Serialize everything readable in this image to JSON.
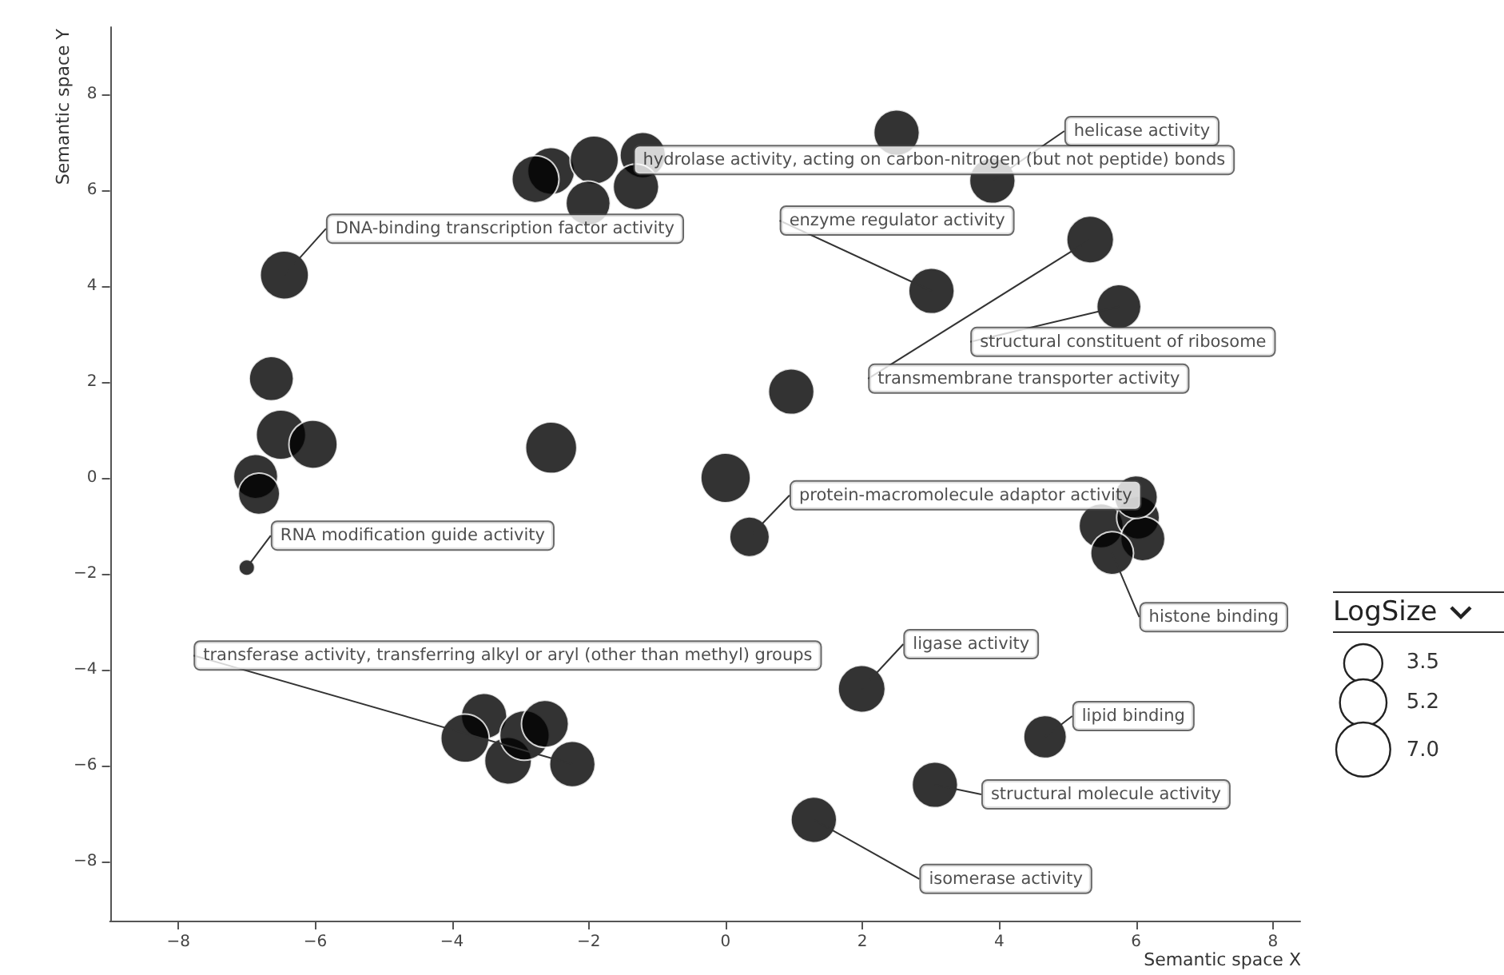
{
  "chart_data": {
    "type": "bubble",
    "xlabel": "Semantic space X",
    "ylabel": "Semantic space Y",
    "legend_title": "LogSize",
    "x": [
      -6.45,
      -6.64,
      -6.5,
      -6.03,
      -6.87,
      -6.82,
      -7.0,
      -2.55,
      -2.55,
      -2.78,
      -1.92,
      -1.21,
      -1.31,
      -2.01,
      0,
      0.96,
      0.35,
      2.5,
      3.9,
      3.01,
      5.33,
      5.75,
      5.49,
      6.03,
      6.1,
      5.65,
      6.0,
      1.99,
      4.67,
      3.06,
      1.29,
      -3.53,
      -3.81,
      -3.18,
      -2.94,
      -2.64,
      -2.24
    ],
    "values": [
      4.23,
      2.07,
      0.9,
      0.7,
      0.03,
      -0.33,
      -1.87,
      0.63,
      6.4,
      6.23,
      6.63,
      6.73,
      6.07,
      5.73,
      0,
      1.8,
      -1.23,
      7.2,
      6.2,
      3.9,
      4.97,
      3.57,
      -1.0,
      -0.83,
      -1.27,
      -1.57,
      -0.4,
      -4.4,
      -5.4,
      -6.4,
      -7.13,
      -4.97,
      -5.43,
      -5.9,
      -5.37,
      -5.13,
      -5.97
    ],
    "sizes": [
      5.6,
      4.7,
      5.9,
      5.6,
      4.7,
      4.1,
      0.6,
      6.3,
      5.3,
      5.3,
      5.6,
      5.0,
      5.0,
      4.7,
      5.9,
      5.0,
      3.8,
      5.0,
      5.0,
      5.0,
      5.3,
      4.7,
      4.7,
      4.4,
      4.7,
      4.4,
      4.4,
      5.3,
      4.4,
      5.0,
      5.0,
      5.0,
      5.6,
      5.3,
      5.9,
      5.3,
      5.0
    ],
    "size_legend": [
      {
        "value": 3.5,
        "label": "3.5"
      },
      {
        "value": 5.2,
        "label": "5.2"
      },
      {
        "value": 7.0,
        "label": "7.0"
      }
    ],
    "color": "#000000",
    "xlim": [
      -9,
      8.4
    ],
    "xticks": [
      -8,
      -6,
      -4,
      -2,
      0,
      2,
      4,
      6,
      8
    ],
    "ylim": [
      -9.25,
      9.4
    ],
    "yticks": [
      -8,
      -6,
      -4,
      -2,
      0,
      2,
      4,
      6,
      8
    ],
    "grid": false,
    "annotations": [
      {
        "text": "DNA-binding transcription factor activity",
        "x": -6.45,
        "y": 4.23
      },
      {
        "text": "hydrolase activity, acting on carbon-nitrogen (but not peptide) bonds",
        "x": -1.21,
        "y": 6.73
      },
      {
        "text": "helicase activity",
        "x": 3.9,
        "y": 6.2
      },
      {
        "text": "enzyme regulator activity",
        "x": 3.01,
        "y": 3.9
      },
      {
        "text": "transmembrane transporter activity",
        "x": 5.33,
        "y": 4.97
      },
      {
        "text": "structural constituent of ribosome",
        "x": 5.75,
        "y": 3.57
      },
      {
        "text": "protein-macromolecule adaptor activity",
        "x": 0.35,
        "y": -1.23
      },
      {
        "text": "histone binding",
        "x": 5.65,
        "y": -1.57
      },
      {
        "text": "RNA modification guide activity",
        "x": -7.0,
        "y": -1.87
      },
      {
        "text": "transferase activity, transferring alkyl or aryl (other than methyl) groups",
        "x": -2.24,
        "y": -5.97
      },
      {
        "text": "ligase activity",
        "x": 1.99,
        "y": -4.4
      },
      {
        "text": "lipid binding",
        "x": 4.67,
        "y": -5.4
      },
      {
        "text": "structural molecule activity",
        "x": 3.06,
        "y": -6.4
      },
      {
        "text": "isomerase activity",
        "x": 1.29,
        "y": -7.13
      }
    ]
  }
}
